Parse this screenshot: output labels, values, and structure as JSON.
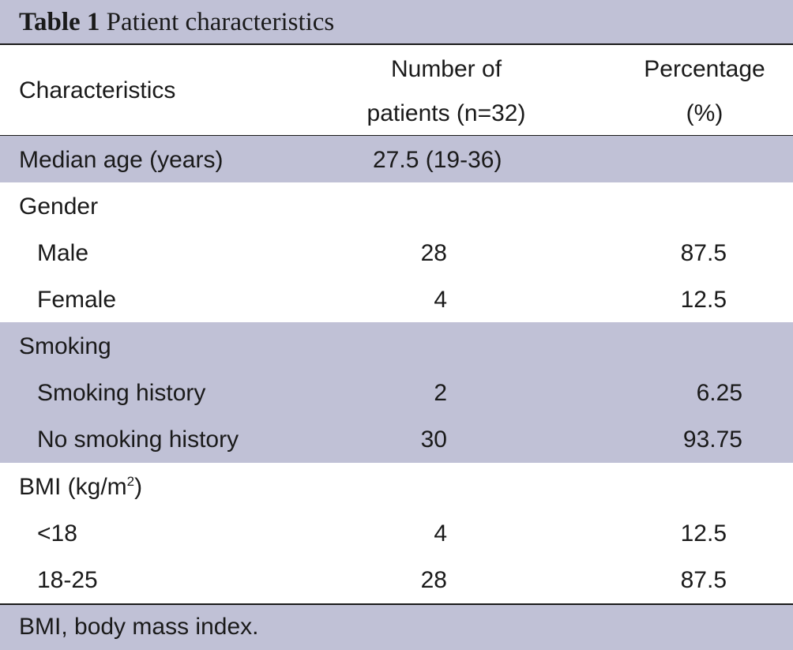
{
  "table": {
    "number_label": "Table 1",
    "title": "Patient characteristics",
    "headers": {
      "characteristics": "Characteristics",
      "number_line1": "Number of",
      "number_line2": "patients (n=32)",
      "percentage_line1": "Percentage",
      "percentage_line2": "(%)"
    },
    "median_age": {
      "label": "Median age (years)",
      "value": "27.5 (19-36)"
    },
    "gender": {
      "label": "Gender",
      "rows": [
        {
          "label": "Male",
          "number": "28",
          "percent": "87.5"
        },
        {
          "label": "Female",
          "number": "4",
          "percent": "12.5"
        }
      ]
    },
    "smoking": {
      "label": "Smoking",
      "rows": [
        {
          "label": "Smoking history",
          "number": "2",
          "percent": "6.25"
        },
        {
          "label": "No smoking history",
          "number": "30",
          "percent": "93.75"
        }
      ]
    },
    "bmi": {
      "label_prefix": "BMI (kg/m",
      "label_sup": "2",
      "label_suffix": ")",
      "rows": [
        {
          "label": "<18",
          "number": "4",
          "percent": "12.5"
        },
        {
          "label": "18-25",
          "number": "28",
          "percent": "87.5"
        }
      ]
    },
    "footnote": "BMI, body mass index."
  },
  "colors": {
    "shade": "#c0c1d6",
    "rule": "#1a1a1a"
  }
}
